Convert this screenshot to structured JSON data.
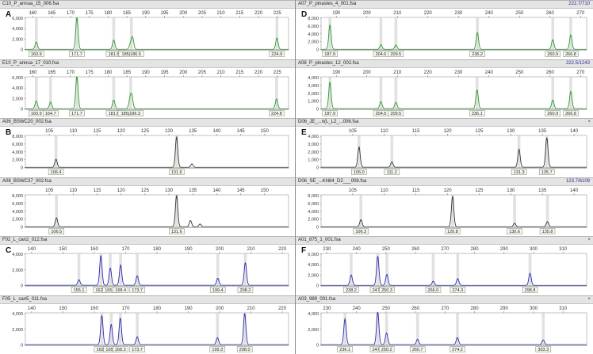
{
  "quadrants": [
    {
      "id": "A",
      "panels": [
        {
          "title": "C10_P_annua_15_006.fsa",
          "right": "",
          "color": "#2a9a2a",
          "ymax": 6000,
          "yticks": [
            0,
            2000,
            4000,
            6000
          ],
          "xmin": 158,
          "xmax": 228,
          "xticks": [
            160,
            165,
            170,
            175,
            180,
            185,
            190,
            195,
            200,
            205,
            210,
            215,
            220,
            225
          ],
          "peaks": [
            {
              "x": 160.9,
              "h": 1400
            },
            {
              "x": 171.7,
              "h": 6100
            },
            {
              "x": 181.5,
              "h": 1800
            },
            {
              "x": 185.9,
              "h": 900
            },
            {
              "x": 186.5,
              "h": 2300
            },
            {
              "x": 224.9,
              "h": 2200
            }
          ],
          "labels": [
            "160.9",
            "171.7",
            "181.5",
            "185|186.5",
            "224.9"
          ],
          "labelx": [
            160.9,
            171.7,
            181.5,
            186.2,
            224.9
          ]
        },
        {
          "title": "E10_P_annua_17_010.fsa",
          "right": "",
          "color": "#2a9a2a",
          "ymax": 6000,
          "yticks": [
            0,
            2000,
            4000,
            6000
          ],
          "xmin": 158,
          "xmax": 228,
          "xticks": [
            160,
            165,
            170,
            175,
            180,
            185,
            190,
            195,
            200,
            205,
            210,
            215,
            220,
            225
          ],
          "peaks": [
            {
              "x": 160.9,
              "h": 1500
            },
            {
              "x": 164.7,
              "h": 1300
            },
            {
              "x": 171.7,
              "h": 6200
            },
            {
              "x": 181.5,
              "h": 1700
            },
            {
              "x": 185.8,
              "h": 1600
            },
            {
              "x": 186.3,
              "h": 2400
            },
            {
              "x": 224.8,
              "h": 1900
            }
          ],
          "labels": [
            "160.9",
            "164.7",
            "171.7",
            "181.5",
            "185|186.3",
            "224.8"
          ],
          "labelx": [
            160.9,
            164.7,
            171.7,
            181.5,
            186.0,
            224.8
          ]
        }
      ]
    },
    {
      "id": "B",
      "panels": [
        {
          "title": "A06_BSWC20_002.fsa",
          "right": "",
          "color": "#333333",
          "ymax": 8000,
          "yticks": [
            0,
            2000,
            4000,
            6000,
            8000
          ],
          "xmin": 100,
          "xmax": 155,
          "xticks": [
            105,
            110,
            115,
            120,
            125,
            130,
            135,
            140,
            145,
            150
          ],
          "peaks": [
            {
              "x": 106.4,
              "h": 2100
            },
            {
              "x": 131.6,
              "h": 7800
            },
            {
              "x": 134.8,
              "h": 900
            }
          ],
          "labels": [
            "106.4",
            "131.6"
          ],
          "labelx": [
            106.4,
            131.6
          ]
        },
        {
          "title": "A08_BSWC37_002.fsa",
          "right": "",
          "color": "#333333",
          "ymax": 8000,
          "yticks": [
            0,
            2000,
            4000,
            6000,
            8000
          ],
          "xmin": 100,
          "xmax": 155,
          "xticks": [
            105,
            110,
            115,
            120,
            125,
            130,
            135,
            140,
            145,
            150
          ],
          "peaks": [
            {
              "x": 106.5,
              "h": 2300
            },
            {
              "x": 131.6,
              "h": 8000
            },
            {
              "x": 134.5,
              "h": 1600
            },
            {
              "x": 136.5,
              "h": 700
            }
          ],
          "labels": [
            "106.5",
            "131.6"
          ],
          "labelx": [
            106.5,
            131.6
          ]
        }
      ]
    },
    {
      "id": "C",
      "panels": [
        {
          "title": "F02_L_can2_012.fsa",
          "right": "",
          "color": "#2a2ab4",
          "ymax": 4000,
          "yticks": [
            0,
            2000,
            4000
          ],
          "xmin": 138,
          "xmax": 222,
          "xticks": [
            140,
            150,
            160,
            170,
            180,
            190,
            200,
            210,
            220
          ],
          "peaks": [
            {
              "x": 155.1,
              "h": 700
            },
            {
              "x": 162.1,
              "h": 3800
            },
            {
              "x": 165.1,
              "h": 2200
            },
            {
              "x": 168.4,
              "h": 2600
            },
            {
              "x": 173.7,
              "h": 1200
            },
            {
              "x": 199.4,
              "h": 900
            },
            {
              "x": 208.2,
              "h": 2900
            }
          ],
          "labels": [
            "155.1",
            "162.1",
            "165.1",
            "168.4",
            "173.7",
            "199.4",
            "208.2"
          ],
          "labelx": [
            155.1,
            162.1,
            165.1,
            168.4,
            173.7,
            199.4,
            208.2
          ]
        },
        {
          "title": "F05_L_can5_011.fsa",
          "right": "",
          "color": "#2a2ab4",
          "ymax": 4000,
          "yticks": [
            0,
            2000,
            4000
          ],
          "xmin": 138,
          "xmax": 222,
          "xticks": [
            140,
            150,
            160,
            170,
            180,
            190,
            200,
            210,
            220
          ],
          "peaks": [
            {
              "x": 162.4,
              "h": 3700
            },
            {
              "x": 165.4,
              "h": 2600
            },
            {
              "x": 168.3,
              "h": 3400
            },
            {
              "x": 173.7,
              "h": 1000
            },
            {
              "x": 199.3,
              "h": 900
            },
            {
              "x": 208.0,
              "h": 4000
            }
          ],
          "labels": [
            "162.4",
            "165.4",
            "168.3",
            "173.7",
            "199.3",
            "208.0"
          ],
          "labelx": [
            162.4,
            165.4,
            168.3,
            173.7,
            199.3,
            208.0
          ]
        }
      ]
    }
  ],
  "quadrants_right": [
    {
      "id": "D",
      "panels": [
        {
          "title": "A07_P_pinastes_4_001.fsa",
          "right": "222.7/710",
          "color": "#2a9a2a",
          "ymax": 8000,
          "yticks": [
            0,
            2000,
            4000,
            6000,
            8000
          ],
          "xmin": 185,
          "xmax": 272,
          "xticks": [
            190,
            200,
            210,
            220,
            230,
            240,
            250,
            260,
            270
          ],
          "peaks": [
            {
              "x": 187.9,
              "h": 6200
            },
            {
              "x": 204.6,
              "h": 1200
            },
            {
              "x": 209.5,
              "h": 1100
            },
            {
              "x": 236.2,
              "h": 4300
            },
            {
              "x": 260.9,
              "h": 2500
            },
            {
              "x": 266.8,
              "h": 3700
            }
          ],
          "labels": [
            "187.9",
            "204.6",
            "209.5",
            "236.2",
            "260.9",
            "266.8"
          ],
          "labelx": [
            187.9,
            204.6,
            209.5,
            236.2,
            260.9,
            266.8
          ]
        },
        {
          "title": "A08_P_pinastes_12_002.fsa",
          "right": "222.5/1243",
          "color": "#2a9a2a",
          "ymax": 4000,
          "yticks": [
            0,
            1000,
            2000,
            3000,
            4000
          ],
          "xmin": 185,
          "xmax": 272,
          "xticks": [
            190,
            200,
            210,
            220,
            230,
            240,
            250,
            260,
            270
          ],
          "peaks": [
            {
              "x": 187.9,
              "h": 3400
            },
            {
              "x": 204.6,
              "h": 900
            },
            {
              "x": 209.5,
              "h": 800
            },
            {
              "x": 236.1,
              "h": 2400
            },
            {
              "x": 260.9,
              "h": 1100
            },
            {
              "x": 266.8,
              "h": 2200
            }
          ],
          "labels": [
            "187.9",
            "204.6",
            "209.5",
            "236.1",
            "260.9",
            "266.8"
          ],
          "labelx": [
            187.9,
            204.6,
            209.5,
            236.1,
            260.9,
            266.8
          ]
        }
      ]
    },
    {
      "id": "E",
      "panels": [
        {
          "title": "D06_JE_...n(L_L2_...006.fsa",
          "right": "",
          "color": "#333333",
          "ymax": 4000,
          "yticks": [
            0,
            1000,
            2000,
            3000,
            4000
          ],
          "xmin": 100,
          "xmax": 142,
          "xticks": [
            105,
            110,
            115,
            120,
            125,
            130,
            135,
            140
          ],
          "peaks": [
            {
              "x": 106.0,
              "h": 2600
            },
            {
              "x": 111.2,
              "h": 700
            },
            {
              "x": 131.3,
              "h": 2300
            },
            {
              "x": 135.7,
              "h": 3800
            }
          ],
          "labels": [
            "106.0",
            "111.2",
            "131.3",
            "135.7"
          ],
          "labelx": [
            106.0,
            111.2,
            131.3,
            135.7
          ]
        },
        {
          "title": "D06_SE_...KN84_D2___008.fsa",
          "right": "123.7/6109",
          "color": "#333333",
          "ymax": 8000,
          "yticks": [
            0,
            2000,
            4000,
            6000,
            8000
          ],
          "xmin": 100,
          "xmax": 142,
          "xticks": [
            105,
            110,
            115,
            120,
            125,
            130,
            135,
            140
          ],
          "peaks": [
            {
              "x": 106.3,
              "h": 1800
            },
            {
              "x": 120.8,
              "h": 7800
            },
            {
              "x": 130.6,
              "h": 900
            },
            {
              "x": 135.8,
              "h": 1300
            }
          ],
          "labels": [
            "106.3",
            "120.8",
            "130.6",
            "135.8"
          ],
          "labelx": [
            106.3,
            120.8,
            130.6,
            135.8
          ]
        }
      ]
    },
    {
      "id": "F",
      "panels": [
        {
          "title": "A01_875_1_001.fsa",
          "right": "",
          "color": "#2a2ab4",
          "ymax": 6000,
          "yticks": [
            0,
            2000,
            4000,
            6000
          ],
          "xmin": 228,
          "xmax": 318,
          "xticks": [
            230,
            240,
            250,
            260,
            270,
            280,
            290,
            300,
            310
          ],
          "peaks": [
            {
              "x": 238.2,
              "h": 2000
            },
            {
              "x": 247.2,
              "h": 5600
            },
            {
              "x": 250.3,
              "h": 2100
            },
            {
              "x": 266.0,
              "h": 800
            },
            {
              "x": 274.3,
              "h": 1300
            },
            {
              "x": 298.8,
              "h": 2300
            }
          ],
          "labels": [
            "238.2",
            "247.2",
            "250.3",
            "266.0",
            "274.3",
            "298.8"
          ],
          "labelx": [
            238.2,
            247.2,
            250.3,
            266.0,
            274.3,
            298.8
          ]
        },
        {
          "title": "A03_989_001.fsa",
          "right": "",
          "color": "#2a2ab4",
          "ymax": 4000,
          "yticks": [
            0,
            2000,
            4000
          ],
          "xmin": 228,
          "xmax": 318,
          "xticks": [
            230,
            240,
            250,
            260,
            270,
            280,
            290,
            300,
            310
          ],
          "peaks": [
            {
              "x": 236.1,
              "h": 3300
            },
            {
              "x": 247.2,
              "h": 4200
            },
            {
              "x": 250.2,
              "h": 1500
            },
            {
              "x": 260.7,
              "h": 700
            },
            {
              "x": 274.2,
              "h": 900
            },
            {
              "x": 303.3,
              "h": 600
            }
          ],
          "labels": [
            "236.1",
            "247.2",
            "250.2",
            "260.7",
            "274.2",
            "303.3"
          ],
          "labelx": [
            236.1,
            247.2,
            250.2,
            260.7,
            274.2,
            303.3
          ]
        }
      ]
    }
  ]
}
